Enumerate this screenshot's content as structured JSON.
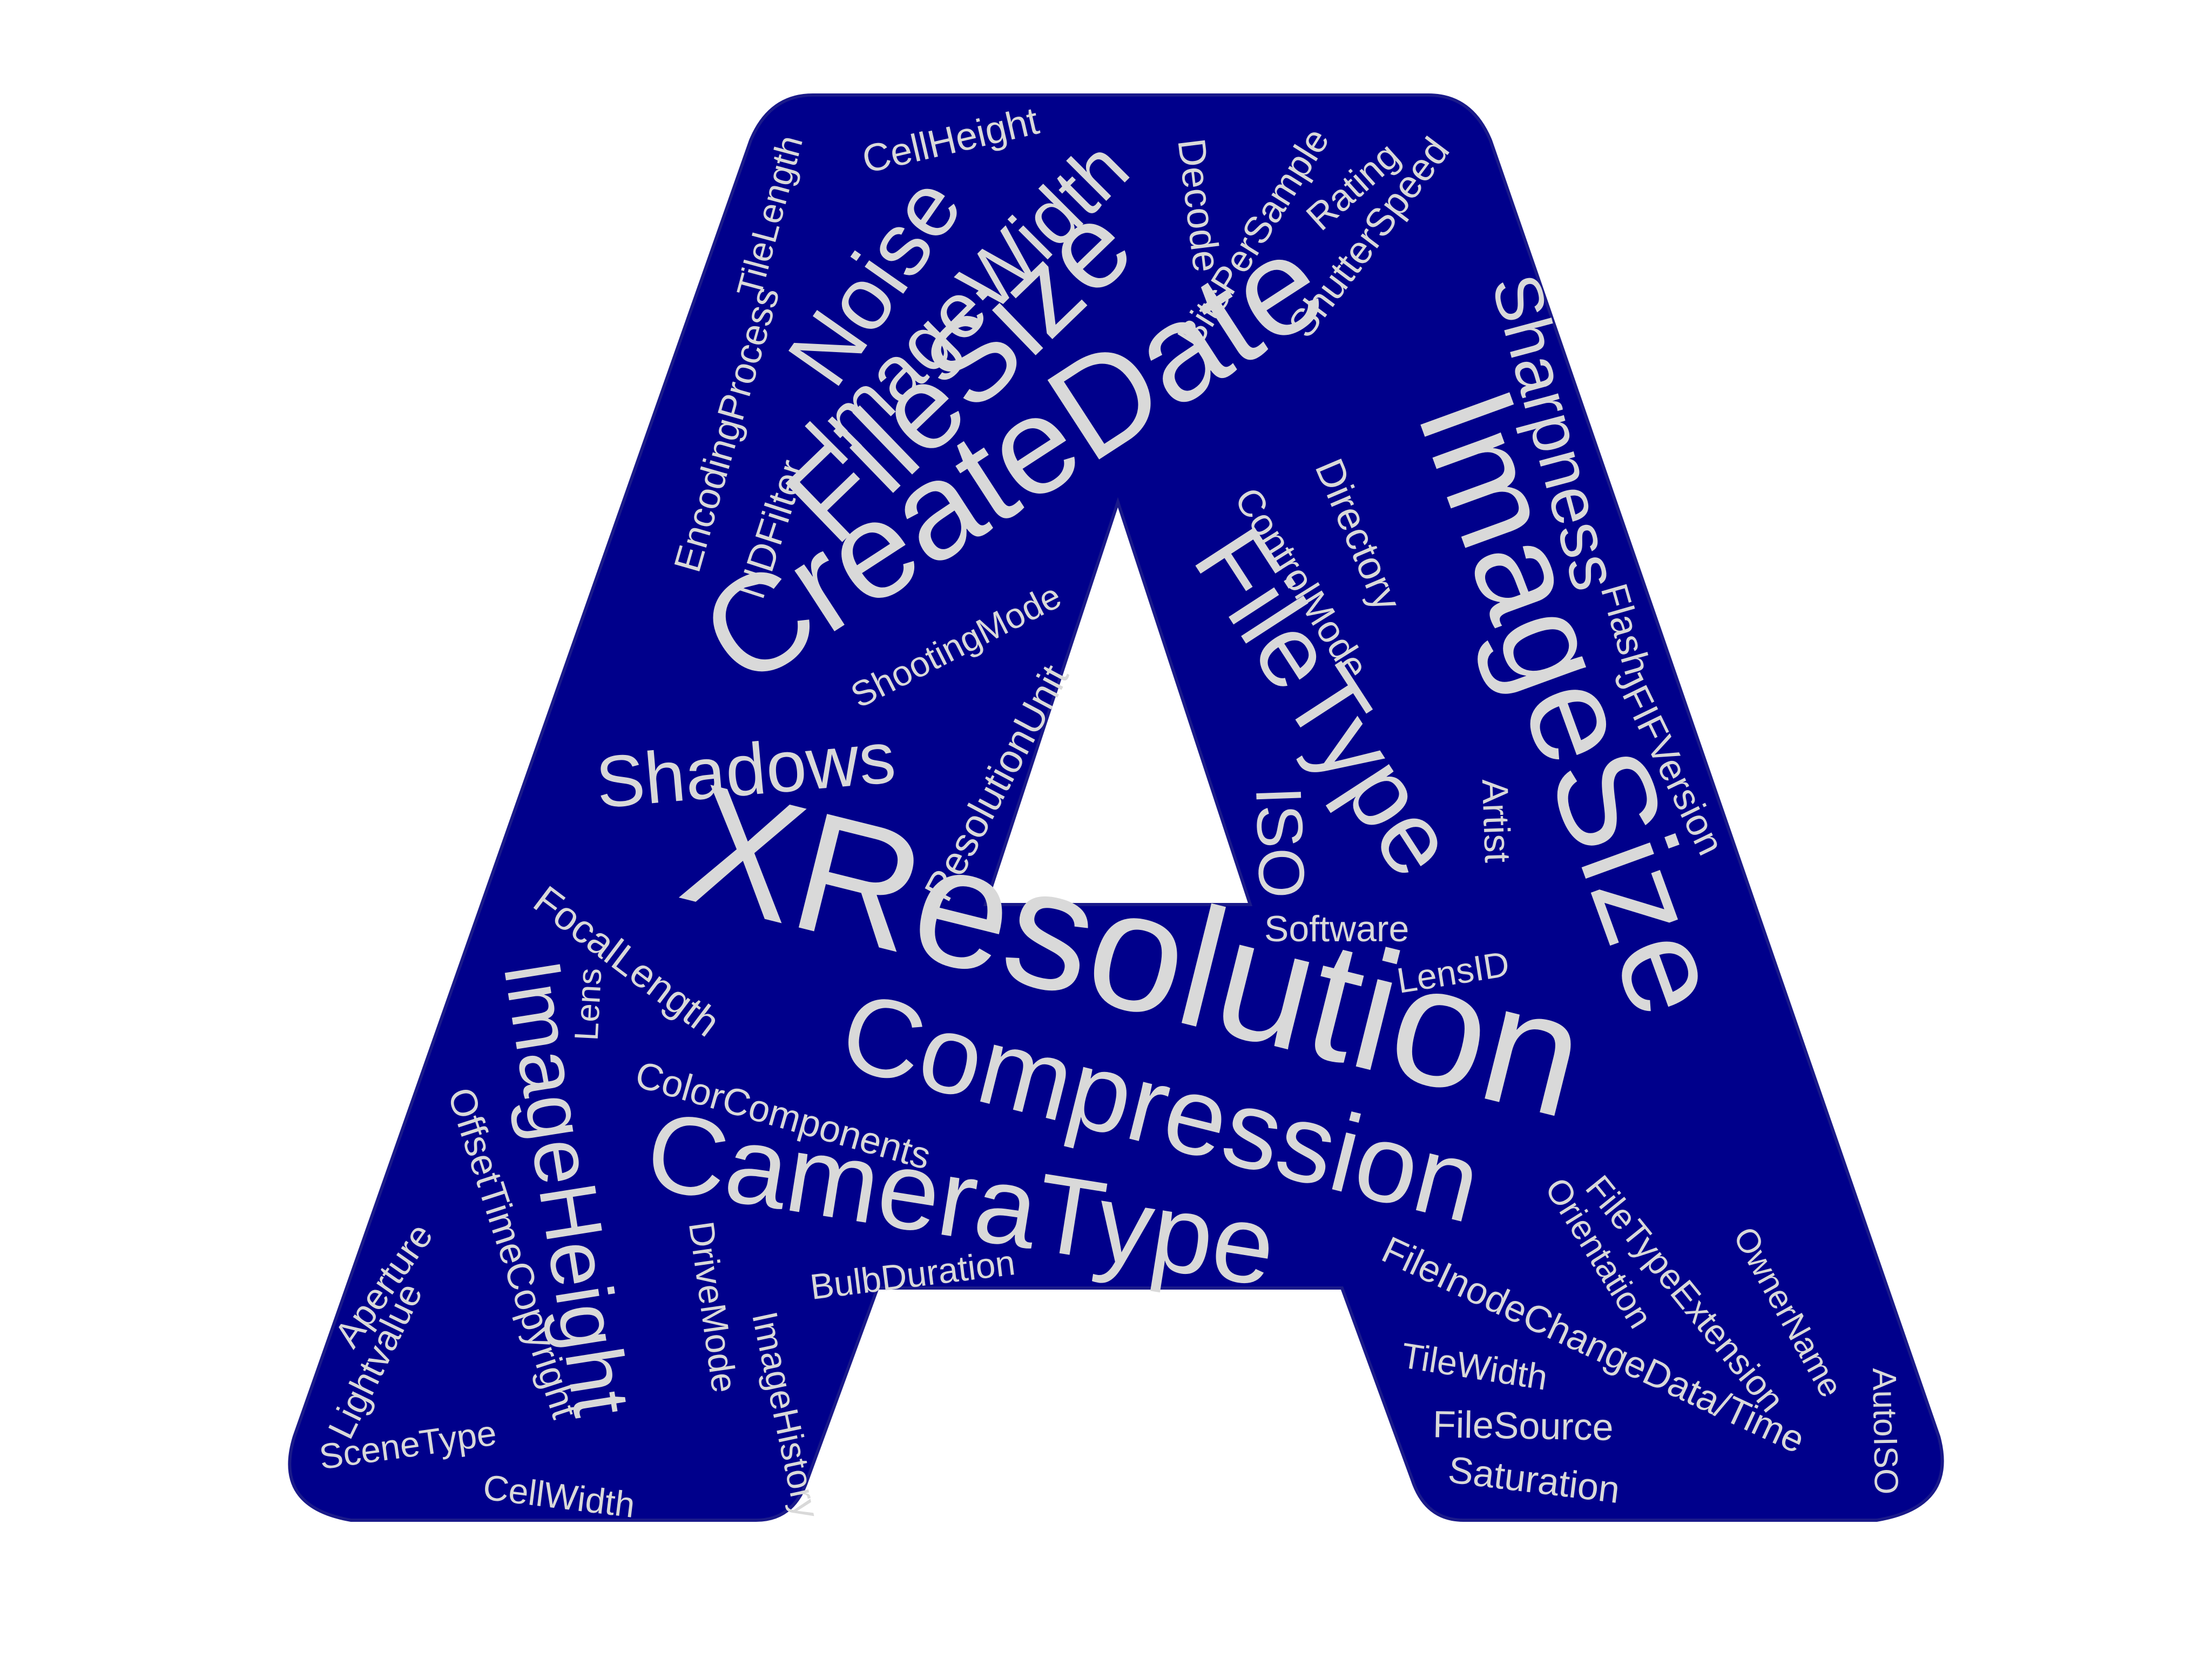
{
  "colors": {
    "background": "#ffffff",
    "letter_fill": "#00008b",
    "letter_edge": "#1a1a8a",
    "word_color": "#d9d9d9"
  },
  "words": [
    "XResolution",
    "ImageSize",
    "CreateDate",
    "FileSize",
    "FileType",
    "Compression",
    "CameraType",
    "ImageWidth",
    "Noise",
    "Sharpness",
    "Shadows",
    "ImageHeight",
    "ISO",
    "CellHeight",
    "TileLength",
    "Decode",
    "BitsPerSample",
    "Rating",
    "ShutterSpeed",
    "EncodingProcess",
    "NDFilter",
    "ShootingMode",
    "ResolutionUnit",
    "ControlMode",
    "Directory",
    "Flash",
    "JFIFVersion",
    "Artist",
    "Software",
    "LensID",
    "FocalLength",
    "Lens",
    "ColorComponents",
    "OffsetTimeCopyright",
    "Aperture",
    "Lightvalue",
    "SceneType",
    "CellWidth",
    "DriveMode",
    "ImageHistory",
    "BulbDuration",
    "FileInodeChangeData/Time",
    "Orientation",
    "FileTypeExtension",
    "OwnerName",
    "AutoISO",
    "TileWidth",
    "FileSource",
    "Saturation"
  ]
}
